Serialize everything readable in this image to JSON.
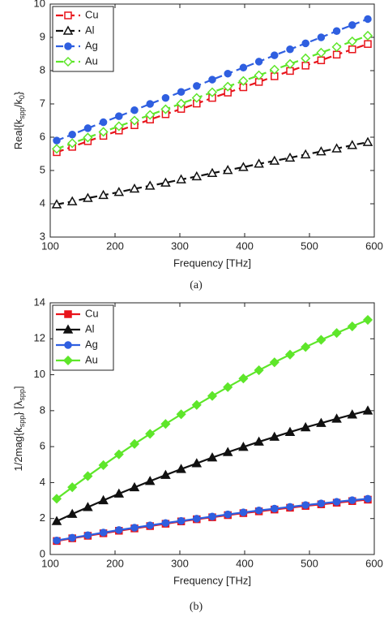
{
  "chart_data": [
    {
      "type": "line",
      "line_style": "dashed",
      "caption": "(a)",
      "xlabel": "Frequency [THz]",
      "ylabel": [
        {
          "text": "Real{k"
        },
        {
          "text": "spp",
          "sub": true
        },
        {
          "text": "/k"
        },
        {
          "text": "0",
          "sub": true
        },
        {
          "text": "}"
        }
      ],
      "x": [
        110,
        134,
        158,
        182,
        206,
        230,
        254,
        278,
        302,
        326,
        350,
        374,
        398,
        422,
        446,
        470,
        494,
        518,
        542,
        566,
        590
      ],
      "xlim": [
        100,
        600
      ],
      "xticks": [
        100,
        200,
        300,
        400,
        500,
        600
      ],
      "ylim": [
        3,
        10
      ],
      "yticks": [
        3,
        4,
        5,
        6,
        7,
        8,
        9,
        10
      ],
      "legend": "upper left",
      "series": [
        {
          "name": "Cu",
          "color": "#e8141b",
          "marker": "square",
          "filled": false,
          "values": [
            5.55,
            5.71,
            5.88,
            6.04,
            6.2,
            6.36,
            6.53,
            6.69,
            6.85,
            7.01,
            7.18,
            7.34,
            7.5,
            7.66,
            7.83,
            7.99,
            8.15,
            8.31,
            8.48,
            8.64,
            8.8
          ]
        },
        {
          "name": "Al",
          "color": "#111111",
          "marker": "triangle",
          "filled": false,
          "values": [
            3.98,
            4.07,
            4.17,
            4.26,
            4.35,
            4.45,
            4.54,
            4.63,
            4.73,
            4.82,
            4.92,
            5.01,
            5.1,
            5.2,
            5.29,
            5.38,
            5.48,
            5.57,
            5.66,
            5.76,
            5.85
          ]
        },
        {
          "name": "Ag",
          "color": "#2f5fe0",
          "marker": "circle",
          "filled": true,
          "values": [
            5.9,
            6.08,
            6.27,
            6.45,
            6.63,
            6.81,
            7.0,
            7.18,
            7.36,
            7.54,
            7.73,
            7.91,
            8.09,
            8.27,
            8.46,
            8.64,
            8.82,
            9.0,
            9.19,
            9.37,
            9.55
          ]
        },
        {
          "name": "Au",
          "color": "#5ee62a",
          "marker": "diamond",
          "filled": false,
          "values": [
            5.65,
            5.82,
            5.99,
            6.16,
            6.33,
            6.5,
            6.67,
            6.84,
            7.01,
            7.18,
            7.35,
            7.52,
            7.69,
            7.86,
            8.03,
            8.2,
            8.37,
            8.54,
            8.71,
            8.88,
            9.05
          ]
        }
      ]
    },
    {
      "type": "line",
      "line_style": "solid",
      "caption": "(b)",
      "xlabel": "Frequency [THz]",
      "ylabel": [
        {
          "text": "1/2mag{k"
        },
        {
          "text": "spp",
          "sub": true
        },
        {
          "text": "} [λ"
        },
        {
          "text": "spp",
          "sub": true
        },
        {
          "text": "]"
        }
      ],
      "x": [
        110,
        134,
        158,
        182,
        206,
        230,
        254,
        278,
        302,
        326,
        350,
        374,
        398,
        422,
        446,
        470,
        494,
        518,
        542,
        566,
        590
      ],
      "xlim": [
        100,
        600
      ],
      "xticks": [
        100,
        200,
        300,
        400,
        500,
        600
      ],
      "ylim": [
        0,
        14
      ],
      "yticks": [
        0,
        2,
        4,
        6,
        8,
        10,
        12,
        14
      ],
      "legend": "upper left",
      "series": [
        {
          "name": "Cu",
          "color": "#e8141b",
          "marker": "square",
          "filled": true,
          "values": [
            0.75,
            0.9,
            1.04,
            1.18,
            1.32,
            1.45,
            1.58,
            1.71,
            1.84,
            1.96,
            2.07,
            2.19,
            2.3,
            2.4,
            2.5,
            2.6,
            2.7,
            2.79,
            2.88,
            2.97,
            3.05
          ]
        },
        {
          "name": "Al",
          "color": "#111111",
          "marker": "triangle",
          "filled": true,
          "values": [
            1.85,
            2.25,
            2.63,
            3.01,
            3.38,
            3.73,
            4.08,
            4.42,
            4.75,
            5.07,
            5.39,
            5.69,
            5.98,
            6.27,
            6.54,
            6.81,
            7.07,
            7.31,
            7.55,
            7.78,
            8.0
          ]
        },
        {
          "name": "Ag",
          "color": "#2f5fe0",
          "marker": "circle",
          "filled": true,
          "values": [
            0.78,
            0.93,
            1.07,
            1.22,
            1.36,
            1.49,
            1.62,
            1.75,
            1.87,
            1.99,
            2.11,
            2.23,
            2.34,
            2.45,
            2.55,
            2.65,
            2.75,
            2.84,
            2.93,
            3.02,
            3.1
          ]
        },
        {
          "name": "Au",
          "color": "#5ee62a",
          "marker": "diamond",
          "filled": true,
          "values": [
            3.1,
            3.74,
            4.36,
            4.97,
            5.57,
            6.15,
            6.71,
            7.26,
            7.8,
            8.32,
            8.82,
            9.31,
            9.79,
            10.25,
            10.69,
            11.12,
            11.54,
            11.94,
            12.32,
            12.69,
            13.05
          ]
        }
      ]
    }
  ]
}
